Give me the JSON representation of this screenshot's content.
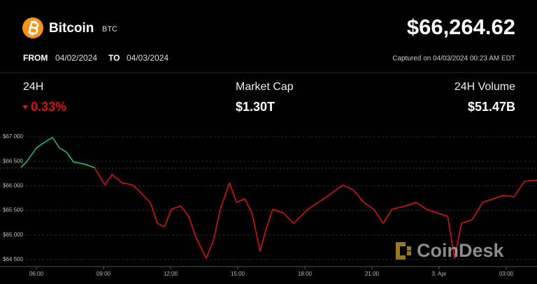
{
  "header": {
    "name": "Bitcoin",
    "symbol": "BTC",
    "price": "$66,264.62",
    "from_label": "FROM",
    "from": "04/02/2024",
    "to_label": "TO",
    "to": "04/03/2024",
    "captured": "Captured on 04/03/2024 00:23 AM EDT"
  },
  "stats": [
    {
      "label": "24H",
      "value": "0.33%"
    },
    {
      "label": "Market Cap",
      "value": "$1.30T"
    },
    {
      "label": "24H Volume",
      "value": "$51.47B"
    }
  ],
  "watermark": "CoinDesk",
  "chart_data": {
    "type": "line",
    "x": [
      5.31,
      5.56,
      5.78,
      6,
      6.31,
      6.72,
      7.03,
      7.34,
      7.66,
      8.13,
      8.59,
      9.06,
      9.38,
      9.84,
      10.31,
      10.63,
      11.09,
      11.41,
      11.72,
      12.03,
      12.44,
      12.81,
      13.13,
      13.59,
      13.91,
      14.22,
      14.63,
      14.94,
      15.31,
      15.63,
      16,
      16.25,
      16.56,
      17.03,
      17.5,
      18.13,
      18.59,
      19.06,
      19.69,
      20.16,
      20.63,
      21.09,
      21.5,
      21.88,
      22.5,
      22.97,
      23.44,
      23.91,
      24.38,
      24.69,
      25,
      25.47,
      25.94,
      26.41,
      26.88,
      27.34,
      27.81,
      28.38
    ],
    "series": [
      {
        "values": [
          66375,
          66489,
          66631,
          66773,
          66872,
          66986,
          66773,
          66688,
          66489,
          66446,
          66375,
          66020,
          66233,
          66062,
          66020,
          65878,
          65665,
          65239,
          65168,
          65523,
          65594,
          65381,
          64955,
          64528,
          64884,
          65523,
          66062,
          65665,
          65736,
          65452,
          64670,
          65097,
          65523,
          65452,
          65239,
          65523,
          65665,
          65807,
          66020,
          65920,
          65665,
          65523,
          65239,
          65523,
          65594,
          65665,
          65523,
          65452,
          65381,
          64528,
          65239,
          65310,
          65665,
          65736,
          65807,
          65778,
          66091,
          66119
        ]
      }
    ],
    "up_color": "#22c55e",
    "down_color": "#e01010",
    "baseline": 66361,
    "xlim": [
      4.375,
      28.375
    ],
    "xticks": [
      {
        "value": 6,
        "label": "06:00"
      },
      {
        "value": 9,
        "label": "09:00"
      },
      {
        "value": 12,
        "label": "12:00"
      },
      {
        "value": 15,
        "label": "15:00"
      },
      {
        "value": 18,
        "label": "18:00"
      },
      {
        "value": 21,
        "label": "21:00"
      },
      {
        "value": 24,
        "label": "3. Apr"
      },
      {
        "value": 27,
        "label": "03:00"
      }
    ],
    "ylim": [
      64358,
      67227
    ],
    "yticks": [
      {
        "value": 64500,
        "label": "$64 500"
      },
      {
        "value": 65000,
        "label": "$65 000"
      },
      {
        "value": 65500,
        "label": "$65 500"
      },
      {
        "value": 66000,
        "label": "$66 000"
      },
      {
        "value": 66500,
        "label": "$66 500"
      },
      {
        "value": 67000,
        "label": "$67 000"
      }
    ],
    "grid": true
  }
}
